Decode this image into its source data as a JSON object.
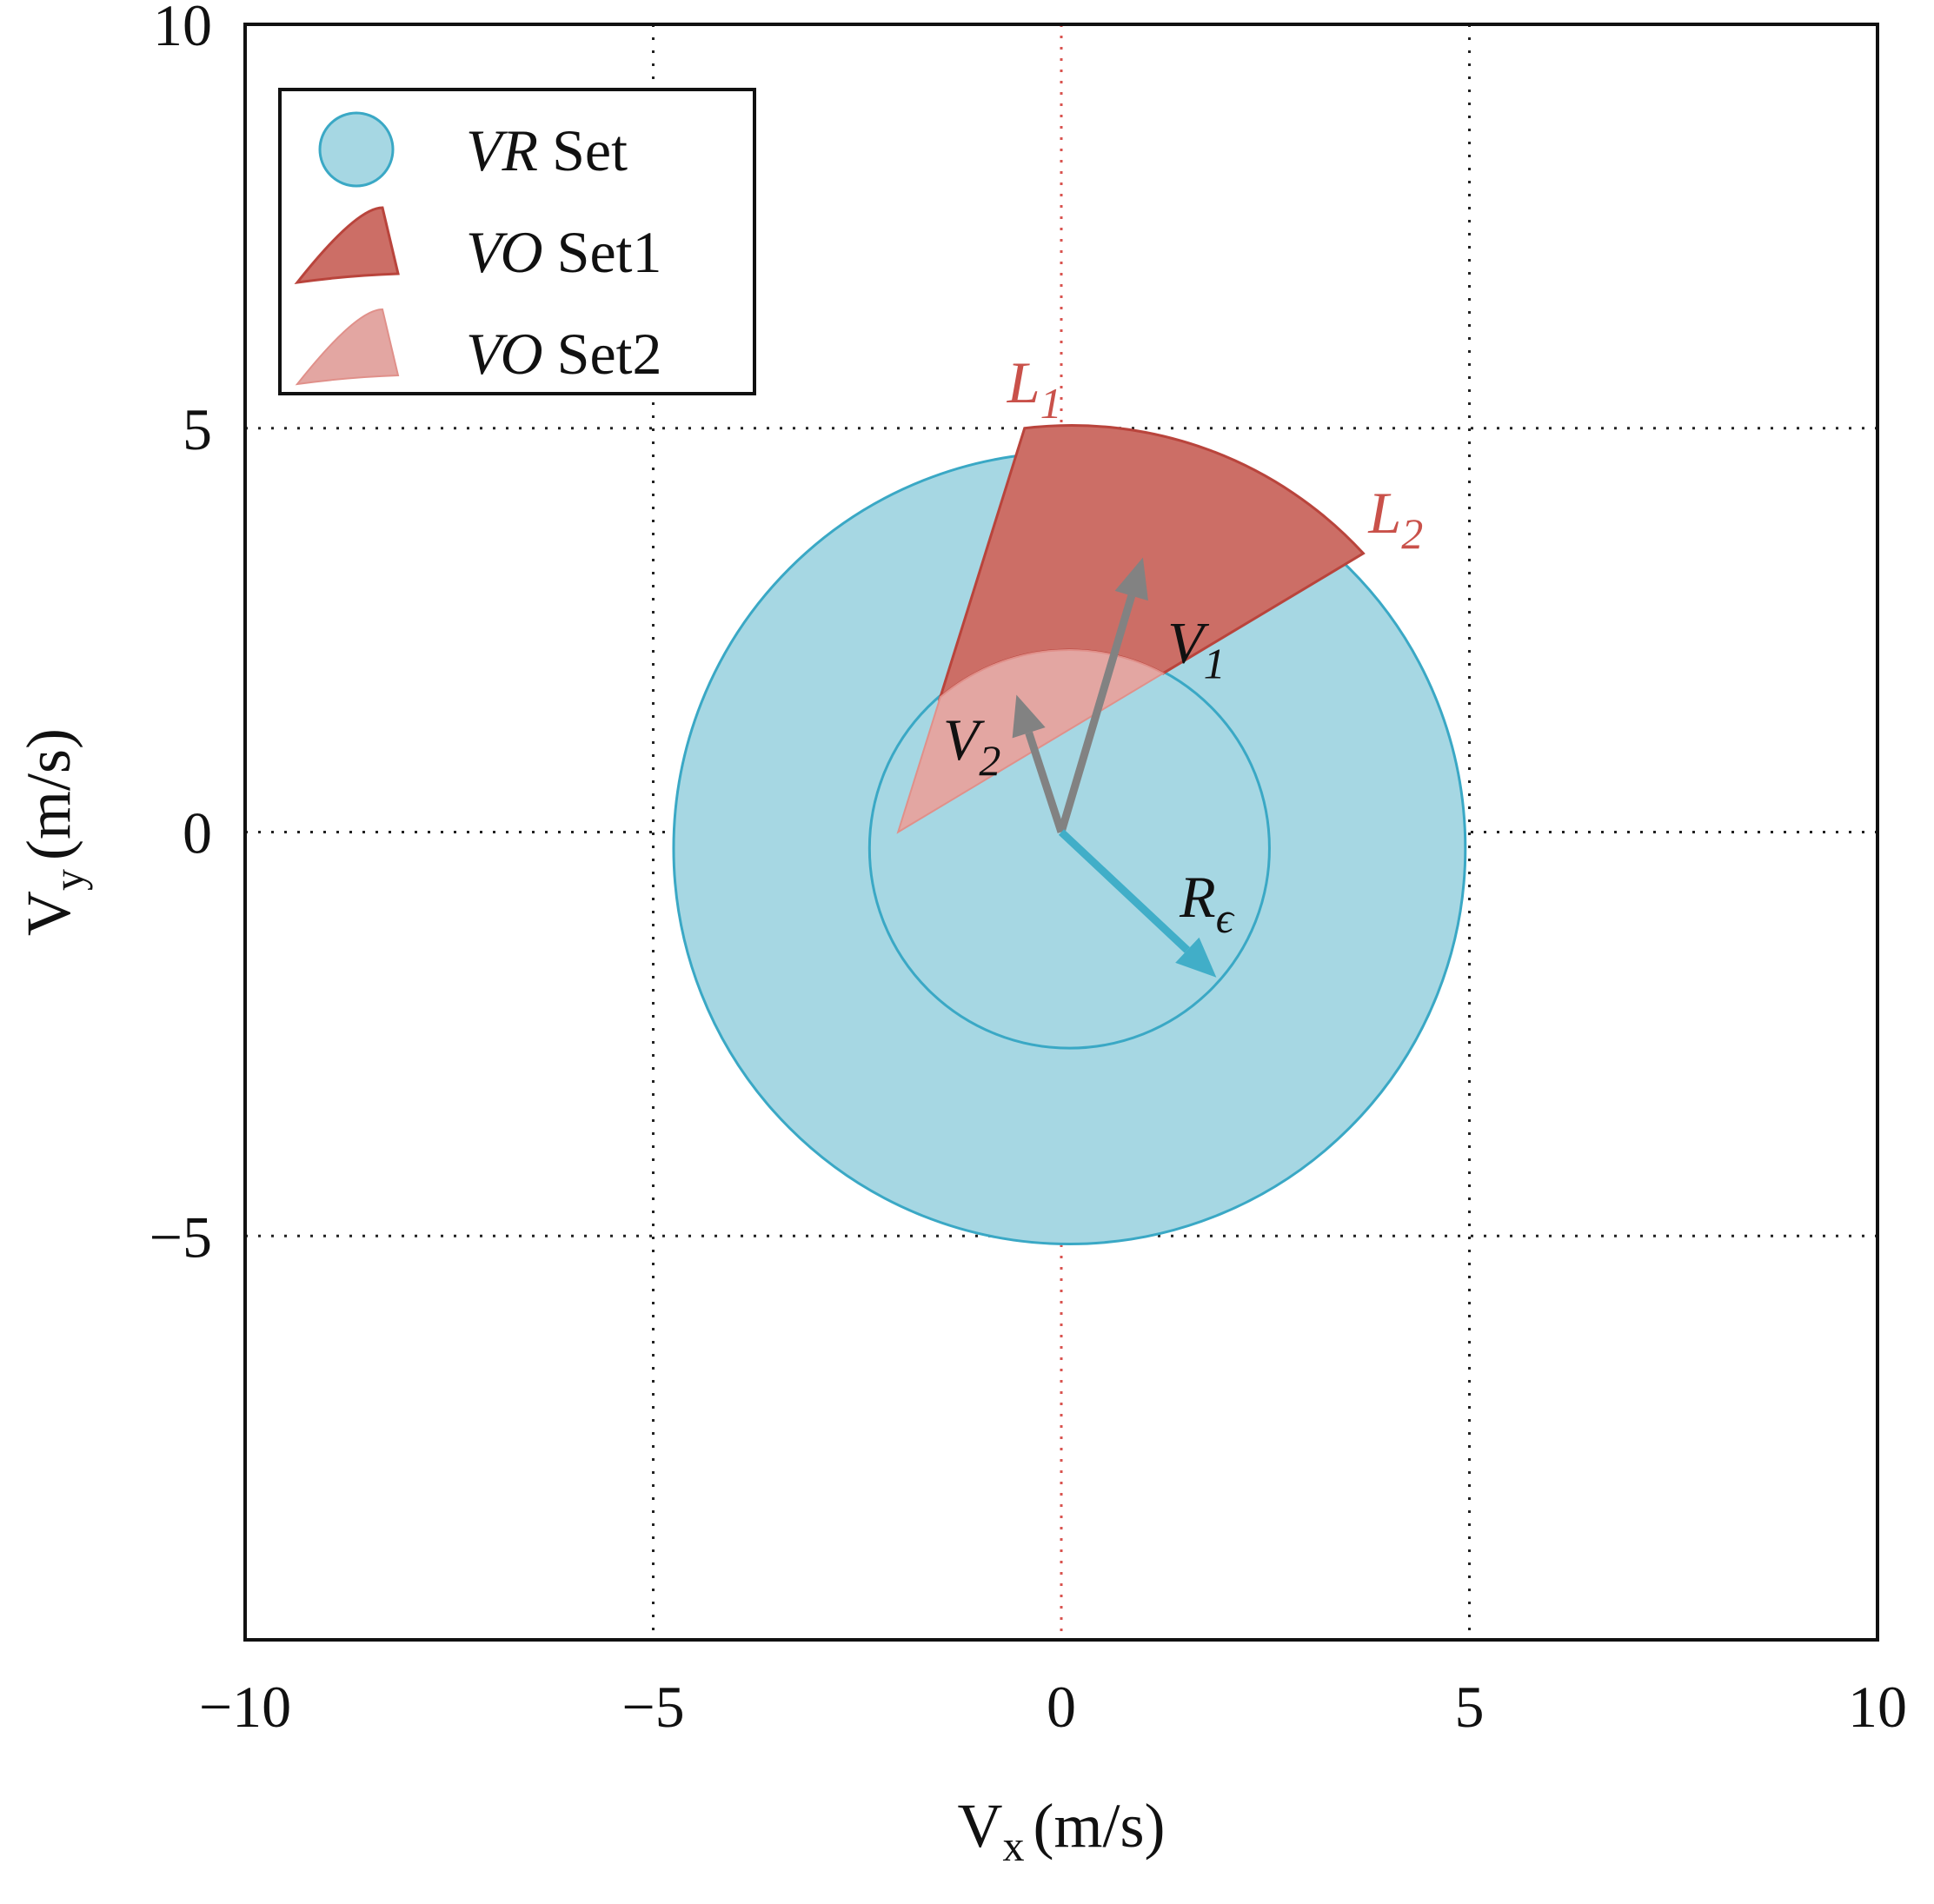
{
  "chart_data": {
    "type": "diagram",
    "xlabel": "V",
    "xlabel_sub": "x",
    "xlabel_unit": "(m/s)",
    "ylabel": "V",
    "ylabel_sub": "y",
    "ylabel_unit": "(m/s)",
    "xlim": [
      -10,
      10
    ],
    "ylim": [
      -10,
      10
    ],
    "x_ticks": [
      -10,
      -5,
      0,
      5,
      10
    ],
    "y_ticks": [
      -5,
      0,
      5,
      10
    ],
    "x_tick_labels": [
      "−10",
      "−5",
      "0",
      "5",
      "10"
    ],
    "y_tick_labels": [
      "−5",
      "0",
      "5",
      "10"
    ],
    "grid": "dotted at ±5 and 0",
    "reference_line_x": 0,
    "vr_set": {
      "center": [
        0.1,
        -0.2
      ],
      "outer_radius": 4.85,
      "inner_radius": 2.45
    },
    "vo_set1": {
      "apex": [
        -2,
        0
      ],
      "l1_end": [
        -0.45,
        5.0
      ],
      "l2_end": [
        3.7,
        3.45
      ]
    },
    "vo_set2": {
      "apex": [
        -2,
        0
      ],
      "inner_radius": 2.45
    },
    "vectors": [
      {
        "name": "V1",
        "from": [
          0,
          0
        ],
        "to": [
          1.0,
          3.4
        ]
      },
      {
        "name": "V2",
        "from": [
          0,
          0
        ],
        "to": [
          -0.55,
          1.7
        ]
      },
      {
        "name": "R_epsilon",
        "from": [
          0,
          0
        ],
        "to": [
          1.9,
          -1.8
        ]
      }
    ],
    "legend": [
      {
        "label_italic": "VR",
        "label_rest": "Set"
      },
      {
        "label_italic": "VO",
        "label_rest": "Set1"
      },
      {
        "label_italic": "VO",
        "label_rest": "Set2"
      }
    ],
    "legend_position": "top-left",
    "annotations": {
      "L1": {
        "main": "L",
        "sub": "1"
      },
      "L2": {
        "main": "L",
        "sub": "2"
      },
      "V1": {
        "main": "V",
        "sub": "1"
      },
      "V2": {
        "main": "V",
        "sub": "2"
      },
      "R": {
        "main": "R",
        "sub": "ϵ"
      }
    },
    "colors": {
      "vr_fill": "#a6d7e3",
      "vr_stroke": "#3aa8c5",
      "vo1_fill": "#cc6e66",
      "vo1_stroke": "#b9443c",
      "vo2_fill": "#e3a6a2",
      "vo2_stroke": "#e0908a",
      "vector_gray": "#828282",
      "vector_blue": "#41aec8",
      "annotation_red": "#c9514a",
      "reference_red": "#d9534f"
    }
  }
}
